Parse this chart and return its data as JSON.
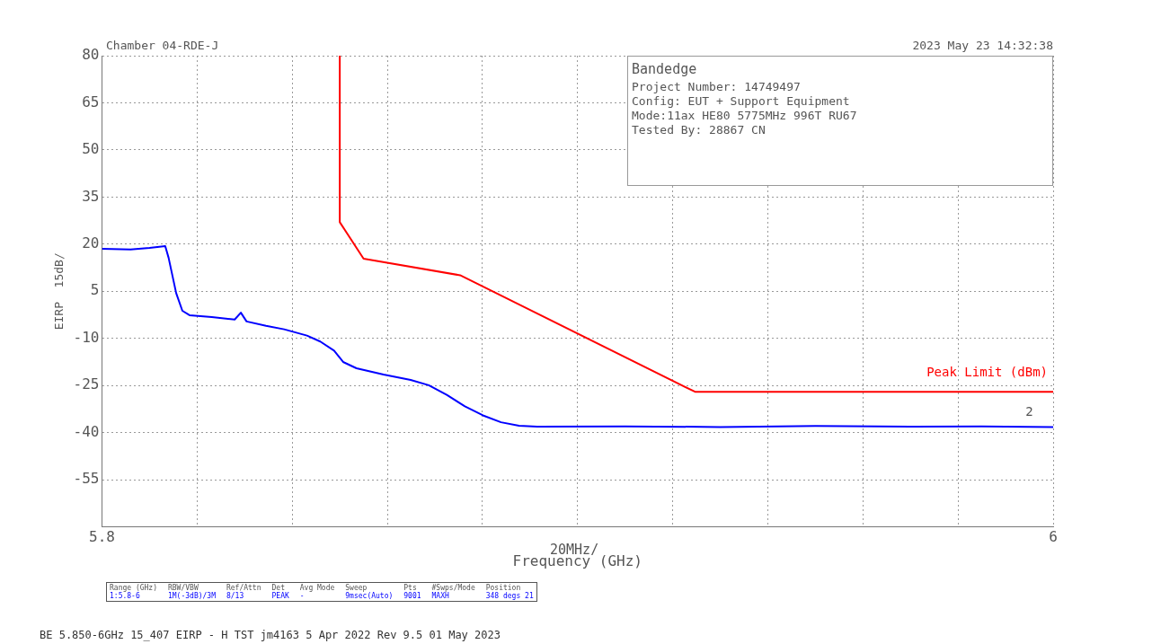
{
  "chart_data": {
    "type": "line",
    "title": "Bandedge",
    "xlabel": "Frequency (GHz)",
    "ylabel": "EIRP  15dB/",
    "xlim": [
      5.8,
      6
    ],
    "xticks": [
      5.8,
      {
        "value": 5.82,
        "label": null
      },
      {
        "value": 5.84,
        "label": null
      },
      {
        "value": 5.86,
        "label": null
      },
      {
        "value": 5.88,
        "label": null
      },
      {
        "value": 5.9,
        "label": null
      },
      {
        "value": 5.92,
        "label": null
      },
      {
        "value": 5.94,
        "label": null
      },
      {
        "value": 5.96,
        "label": null
      },
      {
        "value": 5.98,
        "label": null
      },
      6
    ],
    "ylim": [
      -70,
      80
    ],
    "yticks": [
      {
        "value": -70,
        "label": null
      },
      -55,
      -40,
      -25,
      -10,
      5,
      20,
      35,
      50,
      65,
      80
    ],
    "grid": true,
    "legend": false,
    "marker": "none",
    "line_style": "solid",
    "series": [
      {
        "color": "#0000ff",
        "x": [
          5.8,
          5.806,
          5.81,
          5.8133,
          5.814,
          5.8156,
          5.8169,
          5.8184,
          5.8231,
          5.8279,
          5.8292,
          5.8304,
          5.8345,
          5.8383,
          5.8431,
          5.8459,
          5.8488,
          5.8507,
          5.8535,
          5.8592,
          5.8649,
          5.8687,
          5.8725,
          5.8763,
          5.8801,
          5.8839,
          5.8877,
          5.8915,
          5.91,
          5.93,
          5.95,
          5.97,
          5.985,
          6
        ],
        "values": [
          18.5,
          18.3,
          18.8,
          19.4,
          15.7,
          4.4,
          -1.2,
          -2.6,
          -3.2,
          -4,
          -1.8,
          -4.6,
          -6,
          -7.1,
          -9.1,
          -11,
          -13.9,
          -17.5,
          -19.5,
          -21.5,
          -23.2,
          -24.9,
          -28,
          -31.6,
          -34.5,
          -36.7,
          -37.8,
          -38.1,
          -38,
          -38.2,
          -37.9,
          -38.1,
          -38,
          -38.2
        ]
      },
      {
        "name": "Peak Limit (dBm)",
        "color": "#ff0000",
        "x": [
          5.85,
          5.85,
          5.855,
          5.8753,
          5.9247,
          6
        ],
        "values": [
          80,
          27,
          15.4,
          10.1,
          -27,
          -27
        ]
      }
    ],
    "annotations": [
      "Chamber 04-RDE-J",
      "2023 May 23   14:32:38",
      "Project Number: 14749497",
      "Config: EUT + Support Equipment",
      "Mode:11ax HE80 5775MHz 996T RU67",
      "Tested By: 28867 CN",
      "20MHz/",
      "Range (GHz)",
      "RBW/VBW",
      "Ref/Attn",
      "Det",
      "Avg Mode",
      "Sweep",
      "Pts",
      "#Swps/Mode",
      "Position",
      "1:5.8-6",
      "1M(-3dB)/3M",
      "8/13",
      "PEAK",
      "-",
      "9msec(Auto)",
      "9001",
      "MAXH",
      "348 degs 21",
      "BE 5.850-6GHz 15_407 EIRP - H TST jm4163  5 Apr 2022 Rev 9.5 01 May 2023",
      {
        "text": "2",
        "x": 5.995,
        "y": -38
      }
    ]
  }
}
